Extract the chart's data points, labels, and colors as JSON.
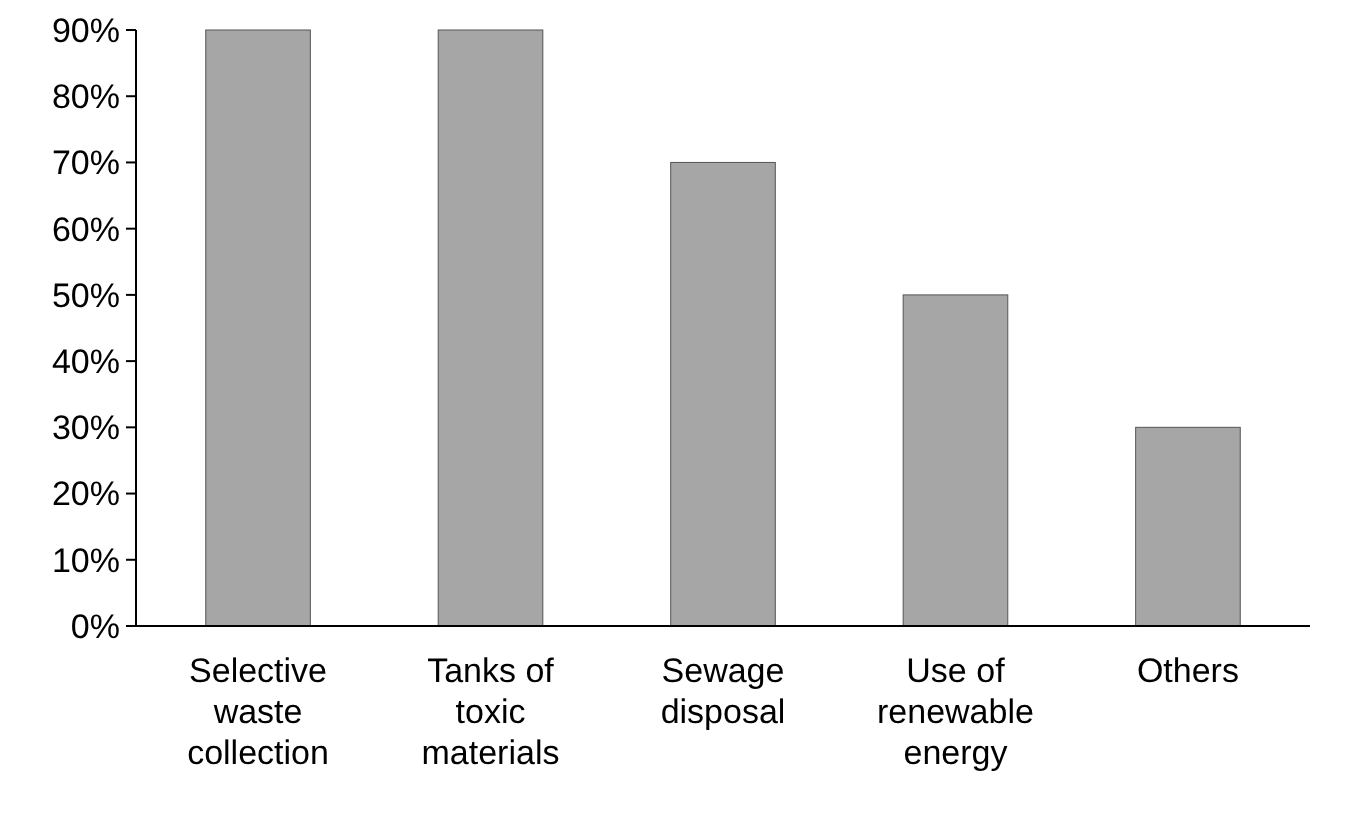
{
  "chart_data": {
    "type": "bar",
    "categories": [
      "Selective waste collection",
      "Tanks of toxic materials",
      "Sewage disposal",
      "Use of renewable energy",
      "Others"
    ],
    "values": [
      90,
      90,
      70,
      50,
      30
    ],
    "color": "#a6a6a6",
    "ylim": [
      0,
      90
    ],
    "yticks": [
      {
        "value": 0,
        "label": "0%"
      },
      {
        "value": 10,
        "label": "10%"
      },
      {
        "value": 20,
        "label": "20%"
      },
      {
        "value": 30,
        "label": "30%"
      },
      {
        "value": 40,
        "label": "40%"
      },
      {
        "value": 50,
        "label": "50%"
      },
      {
        "value": 60,
        "label": "60%"
      },
      {
        "value": 70,
        "label": "70%"
      },
      {
        "value": 80,
        "label": "80%"
      },
      {
        "value": 90,
        "label": "90%"
      }
    ],
    "grid": false
  }
}
